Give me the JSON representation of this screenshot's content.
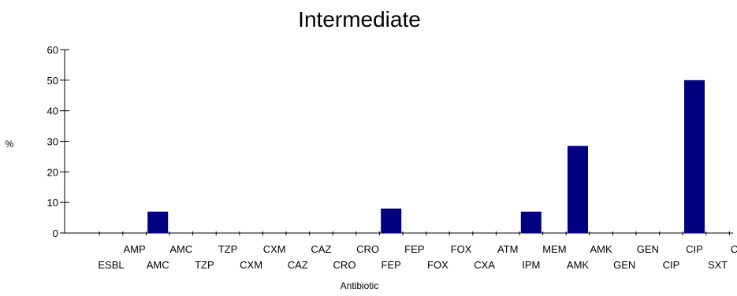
{
  "chart_data": {
    "type": "bar",
    "title": "Intermediate",
    "xlabel": "Antibiotic",
    "ylabel": "%",
    "ylim": [
      0,
      60
    ],
    "yticks": [
      0,
      10,
      20,
      30,
      40,
      50,
      60
    ],
    "grid": false,
    "legend": "none",
    "colors": {
      "bar": "#000080",
      "axis": "#000000",
      "background": "#ffffff"
    },
    "categories": [
      "ESBL",
      "AMP",
      "AMC",
      "AMC",
      "TZP",
      "TZP",
      "CXM",
      "CXM",
      "CAZ",
      "CAZ",
      "CRO",
      "CRO",
      "FEP",
      "FEP",
      "FOX",
      "FOX",
      "CXA",
      "ATM",
      "IPM",
      "MEM",
      "AMK",
      "AMK",
      "GEN",
      "GEN",
      "CIP",
      "CIP",
      "SXT",
      "COL"
    ],
    "values": [
      0,
      0,
      7,
      0,
      0,
      0,
      0,
      0,
      0,
      0,
      0,
      0,
      8,
      0,
      0,
      0,
      0,
      0,
      7,
      0,
      28.5,
      0,
      0,
      0,
      0,
      50,
      0,
      0
    ]
  }
}
